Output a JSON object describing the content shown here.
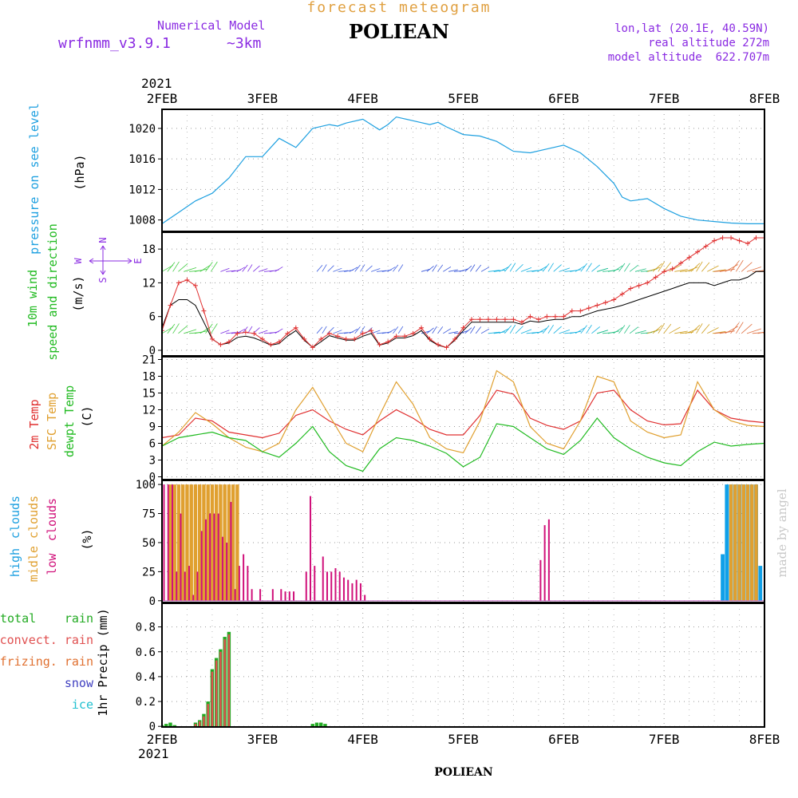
{
  "header": {
    "product": "forecast meteogram",
    "station": "POLIEAN",
    "model_label": "Numerical Model",
    "model_name": "wrfnmm_v3.9.1",
    "resolution": "~3km",
    "coords": "lon,lat (20.1E, 40.59N)",
    "real_altitude": "real altitude 272m",
    "model_altitude": "model altitude  622.707m",
    "credit": "made by angel",
    "bottom_station": "POLIEAN"
  },
  "colors": {
    "orange": "#e0a040",
    "violet": "#8a2be2",
    "pressure": "#1ea0e0",
    "wind_label": "#22bb22",
    "temp2m": "#e03030",
    "tsfc": "#e0a030",
    "dewpt": "#22bb22",
    "high": "#10a0e8",
    "mid": "#e0a030",
    "low": "#d0107a",
    "rain": "#22aa22",
    "convect": "#e05050",
    "snow": "#4040c0",
    "ice": "#20c0d0"
  },
  "time_axis": {
    "year": "2021",
    "ticks": [
      "2FEB",
      "3FEB",
      "4FEB",
      "5FEB",
      "6FEB",
      "7FEB",
      "8FEB"
    ],
    "range_hours": [
      0,
      144
    ]
  },
  "chart_data": [
    {
      "type": "line",
      "panel": "pressure",
      "label": "pressure on see level",
      "units": "(hPa)",
      "yticks": [
        "1008",
        "1012",
        "1016",
        "1020"
      ],
      "ylim": [
        1006.5,
        1022.5
      ],
      "series": [
        {
          "x": [
            0,
            4,
            8,
            12,
            16,
            20,
            24,
            28,
            32,
            36,
            40,
            42,
            44,
            48,
            52,
            54,
            56,
            60,
            64,
            66,
            68,
            72,
            76,
            80,
            84,
            88,
            92,
            96,
            100,
            104,
            108,
            110,
            112,
            116,
            120,
            124,
            128,
            132,
            136,
            140,
            144
          ],
          "y": [
            1007.5,
            1009,
            1010.5,
            1011.5,
            1013.5,
            1016.3,
            1016.3,
            1018.7,
            1017.5,
            1020,
            1020.5,
            1020.3,
            1020.7,
            1021.2,
            1019.8,
            1020.5,
            1021.5,
            1021,
            1020.5,
            1020.8,
            1020.2,
            1019.2,
            1019,
            1018.3,
            1017,
            1016.8,
            1017.3,
            1017.8,
            1016.8,
            1015,
            1012.8,
            1011,
            1010.5,
            1010.8,
            1009.5,
            1008.5,
            1008,
            1007.8,
            1007.6,
            1007.5,
            1007.5
          ]
        }
      ]
    },
    {
      "type": "line",
      "panel": "wind",
      "label": [
        "10m wind",
        "speed and direction"
      ],
      "units": "(m/s)",
      "compass": {
        "n": "N",
        "w": "W",
        "e": "E",
        "s": "S"
      },
      "yticks": [
        "0",
        "6",
        "12",
        "18"
      ],
      "ylim": [
        -1,
        21
      ],
      "series": [
        {
          "name": "speed",
          "x": [
            0,
            2,
            4,
            6,
            8,
            10,
            12,
            14,
            16,
            18,
            20,
            22,
            24,
            26,
            28,
            30,
            32,
            34,
            36,
            38,
            40,
            42,
            44,
            46,
            48,
            50,
            52,
            54,
            56,
            58,
            60,
            62,
            64,
            66,
            68,
            70,
            72,
            74,
            76,
            78,
            80,
            82,
            84,
            86,
            88,
            90,
            92,
            94,
            96,
            98,
            100,
            102,
            104,
            106,
            108,
            110,
            112,
            114,
            116,
            118,
            120,
            122,
            124,
            126,
            128,
            130,
            132,
            134,
            136,
            138,
            140,
            142,
            144
          ],
          "y": [
            3.5,
            8,
            12,
            12.5,
            11.5,
            7,
            2,
            1,
            1.5,
            3,
            3.2,
            3,
            2,
            1,
            1.5,
            3,
            4,
            2,
            0.5,
            2,
            3,
            2.5,
            2,
            2,
            3,
            3.5,
            1,
            1.5,
            2.5,
            2.5,
            3,
            4,
            2,
            1,
            0.5,
            2,
            4,
            5.5,
            5.5,
            5.5,
            5.5,
            5.5,
            5.5,
            5,
            6,
            5.5,
            6,
            6,
            6,
            7,
            7,
            7.5,
            8,
            8.5,
            9,
            10,
            11,
            11.5,
            12,
            13,
            14,
            14.5,
            15.5,
            16.5,
            17.5,
            18.5,
            19.5,
            20,
            20,
            19.5,
            19,
            20,
            20
          ]
        },
        {
          "name": "gust",
          "x": [
            0,
            2,
            4,
            6,
            8,
            10,
            12,
            14,
            16,
            18,
            20,
            22,
            24,
            26,
            28,
            30,
            32,
            34,
            36,
            38,
            40,
            42,
            44,
            46,
            48,
            50,
            52,
            54,
            56,
            58,
            60,
            62,
            64,
            66,
            68,
            70,
            72,
            74,
            76,
            78,
            80,
            82,
            84,
            86,
            88,
            90,
            92,
            94,
            96,
            98,
            100,
            102,
            104,
            106,
            108,
            110,
            112,
            114,
            116,
            118,
            120,
            122,
            124,
            126,
            128,
            130,
            132,
            134,
            136,
            138,
            140,
            142,
            144
          ],
          "y": [
            4,
            8,
            9,
            9,
            8,
            5,
            2,
            1,
            1.3,
            2.3,
            2.5,
            2.2,
            1.6,
            0.9,
            1.2,
            2.5,
            3.5,
            1.8,
            0.5,
            1.5,
            2.6,
            2.2,
            1.8,
            1.8,
            2.5,
            3,
            0.9,
            1.3,
            2.2,
            2.2,
            2.6,
            3.5,
            1.8,
            0.9,
            0.5,
            1.8,
            3.5,
            5,
            5,
            5,
            5,
            5,
            5,
            4.6,
            5.2,
            5,
            5.3,
            5.5,
            5.5,
            6,
            6,
            6.5,
            7,
            7.3,
            7.6,
            8,
            8.5,
            9,
            9.5,
            10,
            10.5,
            11,
            11.5,
            12,
            12,
            12,
            11.5,
            12,
            12.5,
            12.5,
            13,
            14,
            14
          ]
        }
      ]
    },
    {
      "type": "line",
      "panel": "temperature",
      "label": [
        "2m Temp",
        "SFC Temp",
        "dewpt Temp"
      ],
      "units": "(C)",
      "yticks": [
        "0",
        "3",
        "6",
        "9",
        "12",
        "15",
        "18",
        "21"
      ],
      "ylim": [
        -0.5,
        21.5
      ],
      "series": [
        {
          "name": "2m Temp",
          "x": [
            0,
            4,
            8,
            12,
            16,
            20,
            24,
            28,
            32,
            36,
            40,
            44,
            48,
            52,
            56,
            60,
            64,
            68,
            72,
            76,
            80,
            84,
            88,
            92,
            96,
            100,
            104,
            108,
            112,
            116,
            120,
            124,
            128,
            132,
            136,
            140,
            144
          ],
          "y": [
            7,
            7.5,
            10.5,
            10,
            8,
            7.5,
            7,
            7.8,
            11,
            12,
            10,
            8.5,
            7.5,
            10,
            12,
            10.5,
            8.5,
            7.5,
            7.5,
            11,
            15.5,
            14.8,
            10.5,
            9.2,
            8.5,
            10,
            15,
            15.5,
            12,
            10,
            9.3,
            9.5,
            15.5,
            12,
            10.5,
            10,
            9.7
          ]
        },
        {
          "name": "SFC Temp",
          "x": [
            0,
            4,
            8,
            12,
            16,
            20,
            24,
            28,
            32,
            36,
            40,
            44,
            48,
            52,
            56,
            60,
            64,
            68,
            72,
            76,
            80,
            84,
            88,
            92,
            96,
            100,
            104,
            108,
            112,
            116,
            120,
            124,
            128,
            132,
            136,
            140,
            144
          ],
          "y": [
            5.5,
            8,
            11.5,
            9.5,
            7,
            5.3,
            4.5,
            6,
            12,
            16,
            11,
            6,
            4.5,
            11,
            17,
            13,
            7,
            5,
            4.3,
            10,
            19,
            17,
            9,
            6,
            5,
            10,
            18,
            17,
            10,
            8,
            7,
            7.5,
            17,
            12,
            10,
            9.2,
            9
          ]
        },
        {
          "name": "dewpt Temp",
          "x": [
            0,
            4,
            8,
            12,
            16,
            20,
            24,
            28,
            32,
            36,
            40,
            44,
            48,
            52,
            56,
            60,
            64,
            68,
            72,
            76,
            80,
            84,
            88,
            92,
            96,
            100,
            104,
            108,
            112,
            116,
            120,
            124,
            128,
            132,
            136,
            140,
            144
          ],
          "y": [
            5.5,
            7,
            7.5,
            8,
            7,
            6.5,
            4.5,
            3.5,
            6,
            9,
            4.5,
            2,
            1,
            5,
            7,
            6.5,
            5.5,
            4.2,
            1.8,
            3.5,
            9.5,
            9,
            7,
            5,
            4,
            6.5,
            10.5,
            7,
            5,
            3.5,
            2.5,
            2,
            4.5,
            6.2,
            5.5,
            5.8,
            6
          ]
        }
      ]
    },
    {
      "type": "bar",
      "panel": "clouds",
      "label": [
        "high",
        "clouds",
        "midle clouds",
        "low",
        "clouds"
      ],
      "units": "(%)",
      "yticks": [
        "0",
        "25",
        "50",
        "75",
        "100"
      ],
      "ylim": [
        -1.5,
        103.5
      ],
      "series": [
        {
          "name": "low",
          "x": [
            0,
            1,
            2,
            3,
            4,
            5,
            6,
            7,
            8,
            9,
            10,
            11,
            12,
            13,
            14,
            15,
            16,
            17,
            18,
            19,
            20,
            21,
            22,
            23,
            24,
            25,
            26,
            27,
            28,
            29,
            30,
            31,
            32,
            33,
            34,
            35,
            36,
            38,
            39,
            40,
            41,
            42,
            43,
            44,
            45,
            46,
            47,
            48,
            49,
            50,
            51,
            52,
            53,
            54,
            55,
            56,
            57,
            58,
            59,
            90,
            91,
            92
          ],
          "y": [
            100,
            100,
            100,
            25,
            75,
            25,
            30,
            5,
            25,
            60,
            70,
            75,
            75,
            75,
            55,
            50,
            85,
            10,
            30,
            40,
            30,
            10,
            0,
            10,
            0,
            0,
            10,
            0,
            10,
            8,
            8,
            8,
            0,
            0,
            25,
            90,
            30,
            38,
            25,
            25,
            28,
            25,
            20,
            18,
            15,
            18,
            15,
            5,
            0,
            0,
            0,
            0,
            0,
            0,
            0,
            0,
            0,
            0,
            0,
            35,
            65,
            70
          ]
        },
        {
          "name": "mid",
          "x": [
            2,
            3,
            4,
            5,
            6,
            7,
            8,
            9,
            10,
            11,
            12,
            13,
            14,
            15,
            16,
            17,
            18,
            136,
            137,
            138,
            139,
            140,
            141,
            142
          ],
          "y": [
            100,
            100,
            100,
            100,
            100,
            100,
            100,
            100,
            100,
            100,
            100,
            100,
            100,
            100,
            100,
            100,
            100,
            100,
            100,
            100,
            100,
            100,
            100,
            100
          ]
        },
        {
          "name": "high",
          "x": [
            134,
            135,
            136,
            137,
            138,
            139,
            140,
            141,
            142,
            143
          ],
          "y": [
            40,
            100,
            100,
            100,
            100,
            100,
            100,
            100,
            100,
            30
          ]
        }
      ]
    },
    {
      "type": "bar",
      "panel": "precipitation",
      "label": [
        "total",
        "rain",
        "convect. rain",
        "frizing. rain",
        "snow",
        "ice"
      ],
      "units": "1hr Precip (mm)",
      "yticks": [
        "0",
        "0.2",
        "0.4",
        "0.6",
        "0.8"
      ],
      "ylim": [
        -0.005,
        0.99
      ],
      "series": [
        {
          "name": "total rain",
          "x": [
            0,
            1,
            2,
            3,
            4,
            5,
            6,
            7,
            8,
            9,
            10,
            11,
            12,
            13,
            14,
            15,
            16,
            17,
            18,
            19,
            20,
            21,
            22,
            23,
            24,
            25,
            26,
            27,
            28,
            29,
            30,
            31,
            32,
            33,
            34,
            35,
            36,
            37,
            38,
            39,
            40,
            41,
            42
          ],
          "y": [
            0.01,
            0.02,
            0.03,
            0.01,
            0,
            0,
            0,
            0,
            0.03,
            0.05,
            0.1,
            0.2,
            0.46,
            0.55,
            0.62,
            0.72,
            0.76,
            0,
            0,
            0,
            0,
            0,
            0,
            0,
            0,
            0,
            0,
            0,
            0,
            0,
            0,
            0,
            0,
            0,
            0,
            0,
            0.02,
            0.03,
            0.03,
            0.02,
            0,
            0,
            0
          ]
        },
        {
          "name": "convect. rain",
          "x": [
            8,
            9,
            10,
            11,
            12,
            13,
            14,
            15,
            16
          ],
          "y": [
            0.02,
            0.04,
            0.08,
            0.18,
            0.44,
            0.53,
            0.6,
            0.7,
            0.74
          ]
        }
      ]
    }
  ]
}
